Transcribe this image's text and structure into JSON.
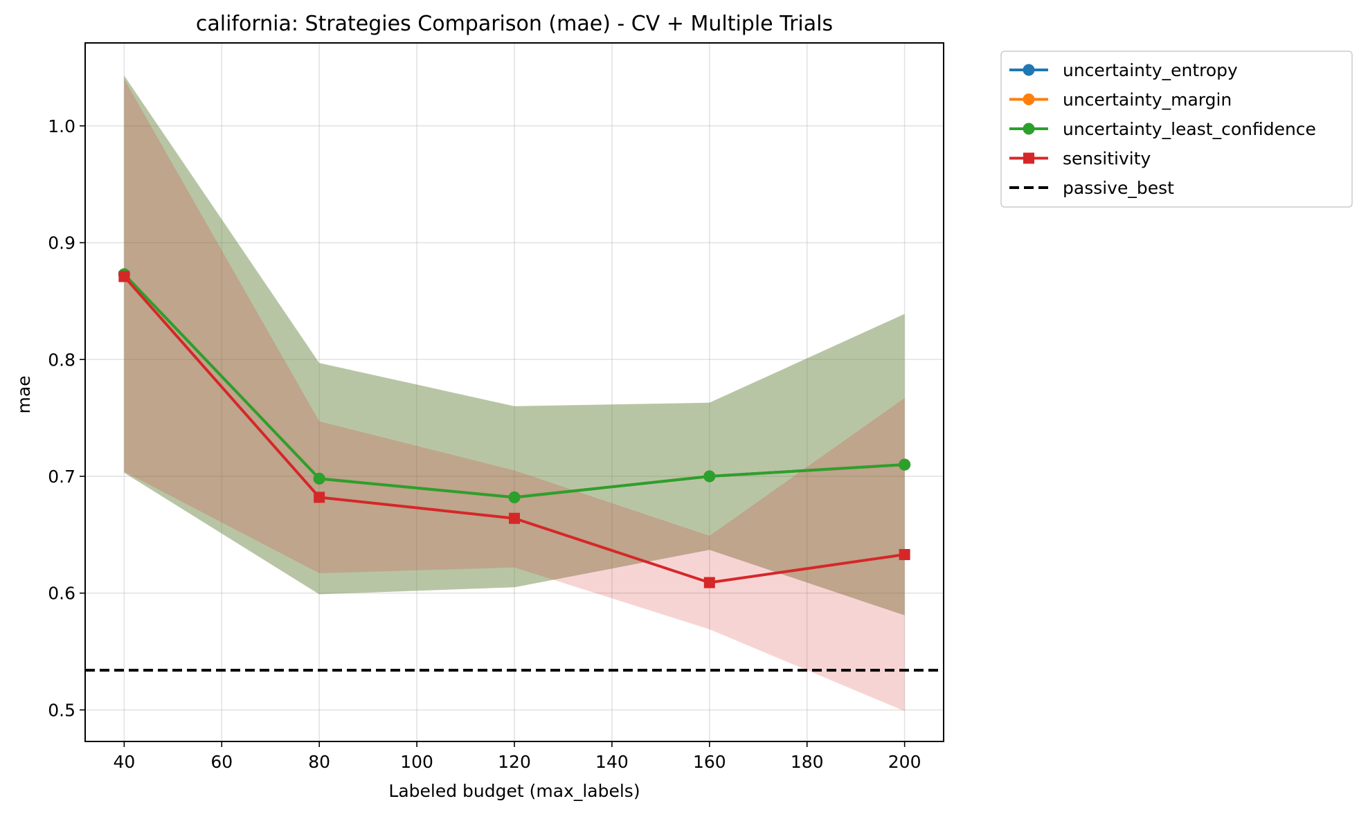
{
  "chart_data": {
    "type": "line",
    "title": "california: Strategies Comparison (mae) - CV + Multiple Trials",
    "xlabel": "Labeled budget (max_labels)",
    "ylabel": "mae",
    "x": [
      40,
      80,
      120,
      160,
      200
    ],
    "xlim": [
      32,
      208
    ],
    "ylim": [
      0.473,
      1.071
    ],
    "xticks": [
      40,
      60,
      80,
      100,
      120,
      140,
      160,
      180,
      200
    ],
    "yticks": [
      0.5,
      0.6,
      0.7,
      0.8,
      0.9,
      1.0
    ],
    "yticks_labels": [
      "0.5",
      "0.6",
      "0.7",
      "0.8",
      "0.9",
      "1.0"
    ],
    "grid": true,
    "legend_position": "outside-right",
    "series": [
      {
        "name": "uncertainty_entropy",
        "color": "#1f77b4",
        "marker": "circle",
        "values": [
          0.873,
          0.698,
          0.682,
          0.7,
          0.71
        ],
        "band_low": [
          0.703,
          0.599,
          0.605,
          0.637,
          0.581
        ],
        "band_high": [
          1.043,
          0.797,
          0.76,
          0.763,
          0.839
        ]
      },
      {
        "name": "uncertainty_margin",
        "color": "#ff7f0e",
        "marker": "circle",
        "values": [
          0.873,
          0.698,
          0.682,
          0.7,
          0.71
        ],
        "band_low": [
          0.703,
          0.599,
          0.605,
          0.637,
          0.581
        ],
        "band_high": [
          1.043,
          0.797,
          0.76,
          0.763,
          0.839
        ]
      },
      {
        "name": "uncertainty_least_confidence",
        "color": "#2ca02c",
        "marker": "circle",
        "values": [
          0.873,
          0.698,
          0.682,
          0.7,
          0.71
        ],
        "band_low": [
          0.703,
          0.599,
          0.605,
          0.637,
          0.581
        ],
        "band_high": [
          1.043,
          0.797,
          0.76,
          0.763,
          0.839
        ]
      },
      {
        "name": "sensitivity",
        "color": "#d62728",
        "marker": "square",
        "values": [
          0.871,
          0.682,
          0.664,
          0.609,
          0.633
        ],
        "band_low": [
          0.704,
          0.617,
          0.622,
          0.569,
          0.499
        ],
        "band_high": [
          1.04,
          0.747,
          0.705,
          0.649,
          0.767
        ]
      }
    ],
    "reference_lines": [
      {
        "name": "passive_best",
        "value": 0.534,
        "color": "#000000",
        "style": "dashed"
      }
    ],
    "legend": [
      {
        "label": "uncertainty_entropy",
        "color": "#1f77b4",
        "marker": "circle",
        "style": "solid"
      },
      {
        "label": "uncertainty_margin",
        "color": "#ff7f0e",
        "marker": "circle",
        "style": "solid"
      },
      {
        "label": "uncertainty_least_confidence",
        "color": "#2ca02c",
        "marker": "circle",
        "style": "solid"
      },
      {
        "label": "sensitivity",
        "color": "#d62728",
        "marker": "square",
        "style": "solid"
      },
      {
        "label": "passive_best",
        "color": "#000000",
        "marker": "none",
        "style": "dashed"
      }
    ]
  }
}
